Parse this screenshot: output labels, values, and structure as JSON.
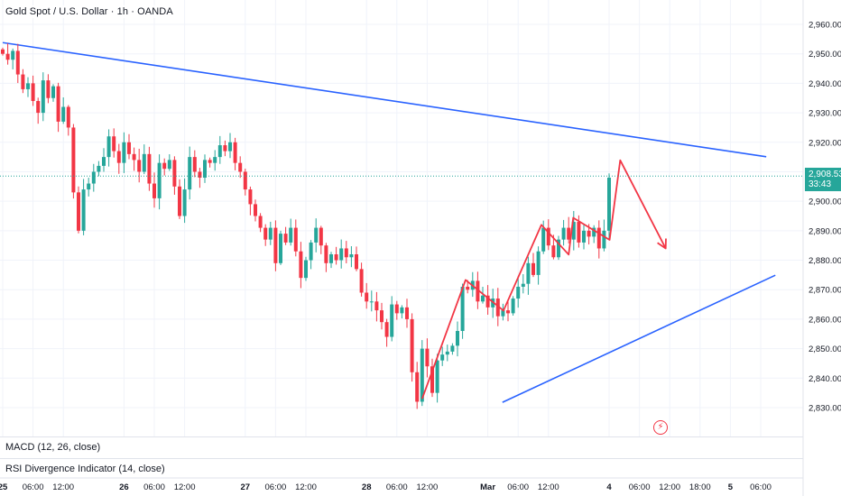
{
  "header": {
    "title": "Gold Spot / U.S. Dollar · 1h · OANDA"
  },
  "indicators": {
    "macd_label": "MACD (12, 26, close)",
    "rsi_label": "RSI Divergence Indicator (14, close)"
  },
  "price_badge": {
    "price": "2,908.535",
    "countdown": "33:43"
  },
  "colors": {
    "up": "#26a69a",
    "down": "#f23645",
    "trendline": "#2962ff",
    "projection": "#f23645",
    "price_line": "#26a69a"
  },
  "icons": {
    "alert": "lightning-icon"
  },
  "lightning_glyph": "⚡",
  "chart_data": {
    "type": "candlestick",
    "title": "Gold Spot / U.S. Dollar · 1h · OANDA",
    "y_ticks": [
      "2,960.000",
      "2,950.000",
      "2,940.000",
      "2,930.000",
      "2,920.000",
      "2,910.000",
      "2,900.000",
      "2,890.000",
      "2,880.000",
      "2,870.000",
      "2,860.000",
      "2,850.000",
      "2,840.000",
      "2,830.000"
    ],
    "y_tick_values": [
      2960,
      2950,
      2940,
      2930,
      2920,
      2910,
      2900,
      2890,
      2880,
      2870,
      2860,
      2850,
      2840,
      2830
    ],
    "ylim": [
      2822,
      2966
    ],
    "x_ticks": [
      {
        "label": "25",
        "x": 0,
        "bold": true
      },
      {
        "label": "06:00",
        "x": 6
      },
      {
        "label": "12:00",
        "x": 12
      },
      {
        "label": "26",
        "x": 24,
        "bold": true
      },
      {
        "label": "06:00",
        "x": 30
      },
      {
        "label": "12:00",
        "x": 36
      },
      {
        "label": "27",
        "x": 48,
        "bold": true
      },
      {
        "label": "06:00",
        "x": 54
      },
      {
        "label": "12:00",
        "x": 60
      },
      {
        "label": "28",
        "x": 72,
        "bold": true
      },
      {
        "label": "06:00",
        "x": 78
      },
      {
        "label": "12:00",
        "x": 84
      },
      {
        "label": "Mar",
        "x": 96,
        "bold": true
      },
      {
        "label": "06:00",
        "x": 102
      },
      {
        "label": "12:00",
        "x": 108
      },
      {
        "label": "4",
        "x": 120,
        "bold": true
      },
      {
        "label": "06:00",
        "x": 126
      },
      {
        "label": "12:00",
        "x": 132
      },
      {
        "label": "18:00",
        "x": 138
      },
      {
        "label": "5",
        "x": 144,
        "bold": true
      },
      {
        "label": "06:00",
        "x": 150
      }
    ],
    "candles_close": [
      2950,
      2948,
      2951,
      2943,
      2938,
      2940,
      2934,
      2930,
      2941,
      2935,
      2939,
      2927,
      2932,
      2925,
      2903,
      2890,
      2904,
      2906,
      2910,
      2912,
      2915,
      2922,
      2917,
      2913,
      2920,
      2916,
      2914,
      2910,
      2916,
      2906,
      2901,
      2913,
      2911,
      2914,
      2905,
      2895,
      2904,
      2915,
      2910,
      2908,
      2914,
      2913,
      2915,
      2919,
      2917,
      2920,
      2913,
      2910,
      2904,
      2899,
      2895,
      2891,
      2887,
      2891,
      2879,
      2889,
      2886,
      2891,
      2883,
      2874,
      2880,
      2886,
      2891,
      2885,
      2879,
      2882,
      2880,
      2884,
      2881,
      2882,
      2877,
      2869,
      2866,
      2866,
      2863,
      2859,
      2854,
      2865,
      2862,
      2864,
      2860,
      2842,
      2832,
      2850,
      2844,
      2835,
      2846,
      2848,
      2849,
      2851,
      2856,
      2871,
      2870,
      2873,
      2866,
      2868,
      2864,
      2867,
      2861,
      2863,
      2862,
      2867,
      2871,
      2872,
      2879,
      2875,
      2883,
      2891,
      2885,
      2881,
      2887,
      2891,
      2887,
      2893,
      2886,
      2890,
      2888,
      2891,
      2884,
      2890,
      2908
    ],
    "trendline_upper": {
      "from": [
        0,
        2953.8
      ],
      "to": [
        151.1,
        2915.1
      ]
    },
    "trendline_lower": {
      "from": [
        98.9,
        2831.8
      ],
      "to": [
        152.9,
        2874.9
      ]
    },
    "projection_path": [
      [
        83.0,
        2833
      ],
      [
        91.6,
        2873.3
      ],
      [
        99.1,
        2862.9
      ],
      [
        106.6,
        2892.0
      ],
      [
        112.0,
        2881.9
      ],
      [
        112.9,
        2894.4
      ],
      [
        120.1,
        2886.9
      ],
      [
        122.2,
        2913.9
      ],
      [
        131.2,
        2884.0
      ]
    ],
    "current_price": 2908.535
  }
}
